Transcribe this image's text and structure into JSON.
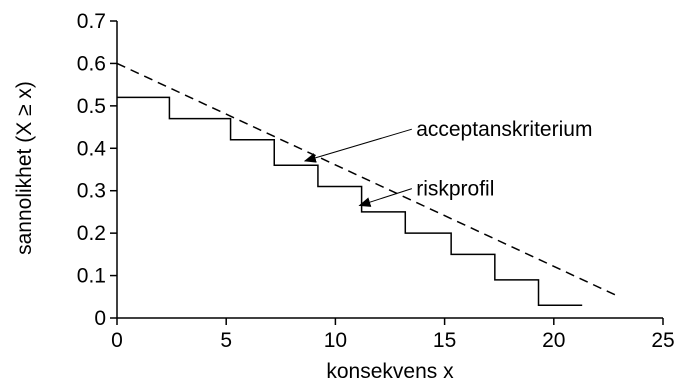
{
  "chart_data": {
    "type": "line",
    "title": "",
    "xlabel": "konsekvens x",
    "ylabel": "sannolikhet (X ≥ x)",
    "xlim": [
      0,
      25
    ],
    "ylim": [
      0,
      0.7
    ],
    "x_ticks": [
      0,
      5,
      10,
      15,
      20,
      25
    ],
    "y_ticks": [
      0,
      0.1,
      0.2,
      0.3,
      0.4,
      0.5,
      0.6,
      0.7
    ],
    "y_tick_labels": [
      "0",
      "0.1",
      "0.2",
      "0.3",
      "0.4",
      "0.5",
      "0.6",
      "0.7"
    ],
    "grid": false,
    "legend": "none",
    "series": [
      {
        "style": "step",
        "line_style": "solid",
        "color": "#000000",
        "x": [
          0,
          2.4,
          5.2,
          7.2,
          9.2,
          11.2,
          13.2,
          15.3,
          17.3,
          19.3,
          21.3
        ],
        "y": [
          0.52,
          0.47,
          0.42,
          0.36,
          0.31,
          0.25,
          0.2,
          0.15,
          0.09,
          0.03,
          0.03
        ]
      },
      {
        "style": "line",
        "line_style": "dashed",
        "color": "#000000",
        "x": [
          0,
          23
        ],
        "y": [
          0.6,
          0.05
        ]
      }
    ],
    "annotations": [
      {
        "text": "acceptanskriterium",
        "text_x": 13.7,
        "text_y": 0.445,
        "arrow_from": [
          13.5,
          0.445
        ],
        "arrow_to": [
          8.6,
          0.37
        ]
      },
      {
        "text": "riskprofil",
        "text_x": 13.7,
        "text_y": 0.305,
        "arrow_from": [
          13.5,
          0.305
        ],
        "arrow_to": [
          11.1,
          0.265
        ]
      }
    ]
  }
}
